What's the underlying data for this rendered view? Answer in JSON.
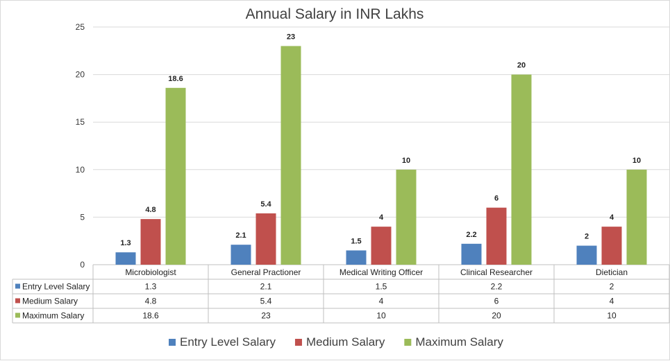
{
  "chart_data": {
    "type": "bar",
    "title": "Annual Salary in INR Lakhs",
    "xlabel": "",
    "ylabel": "",
    "ylim": [
      0,
      25
    ],
    "yticks": [
      0,
      5,
      10,
      15,
      20,
      25
    ],
    "grid": true,
    "legend_position": "bottom",
    "categories": [
      "Microbiologist",
      "General Practioner",
      "Medical Writing Officer",
      "Clinical Researcher",
      "Dietician"
    ],
    "series": [
      {
        "name": "Entry Level Salary",
        "color": "#4f81bd",
        "values": [
          1.3,
          2.1,
          1.5,
          2.2,
          2
        ]
      },
      {
        "name": "Medium Salary",
        "color": "#c0504d",
        "values": [
          4.8,
          5.4,
          4,
          6,
          4
        ]
      },
      {
        "name": "Maximum Salary",
        "color": "#9bbb59",
        "values": [
          18.6,
          23,
          10,
          20,
          10
        ]
      }
    ],
    "data_table": true
  }
}
